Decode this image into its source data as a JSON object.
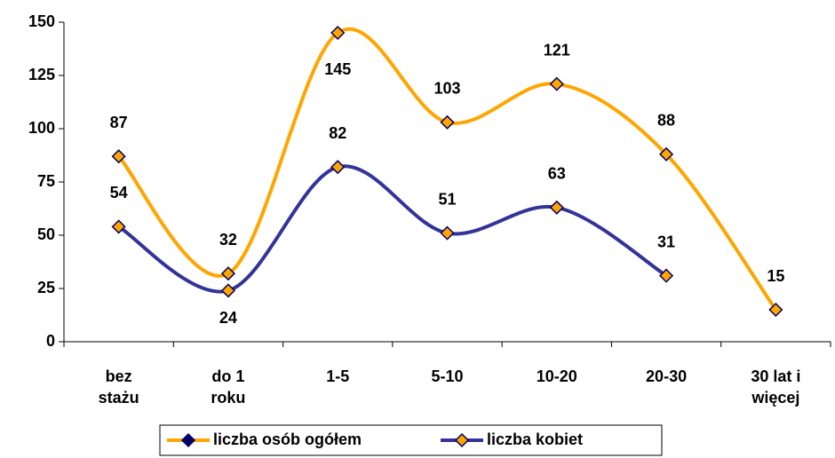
{
  "chart_data": {
    "type": "line",
    "categories": [
      [
        "bez",
        "stażu"
      ],
      [
        "do 1",
        "roku"
      ],
      [
        "1-5"
      ],
      [
        "5-10"
      ],
      [
        "10-20"
      ],
      [
        "20-30"
      ],
      [
        "30 lat i",
        "więcej"
      ]
    ],
    "series": [
      {
        "name": "liczba osób ogółem",
        "color": "#ffa500",
        "marker_color": "#ffa500",
        "values": [
          87,
          32,
          145,
          103,
          121,
          88,
          15
        ]
      },
      {
        "name": "liczba kobiet",
        "color": "#333399",
        "marker_color": "#ffa500",
        "values": [
          54,
          24,
          82,
          51,
          63,
          31,
          null
        ]
      }
    ],
    "ylim": [
      0,
      150
    ],
    "yticks": [
      0,
      25,
      50,
      75,
      100,
      125,
      150
    ],
    "smooth": true
  }
}
